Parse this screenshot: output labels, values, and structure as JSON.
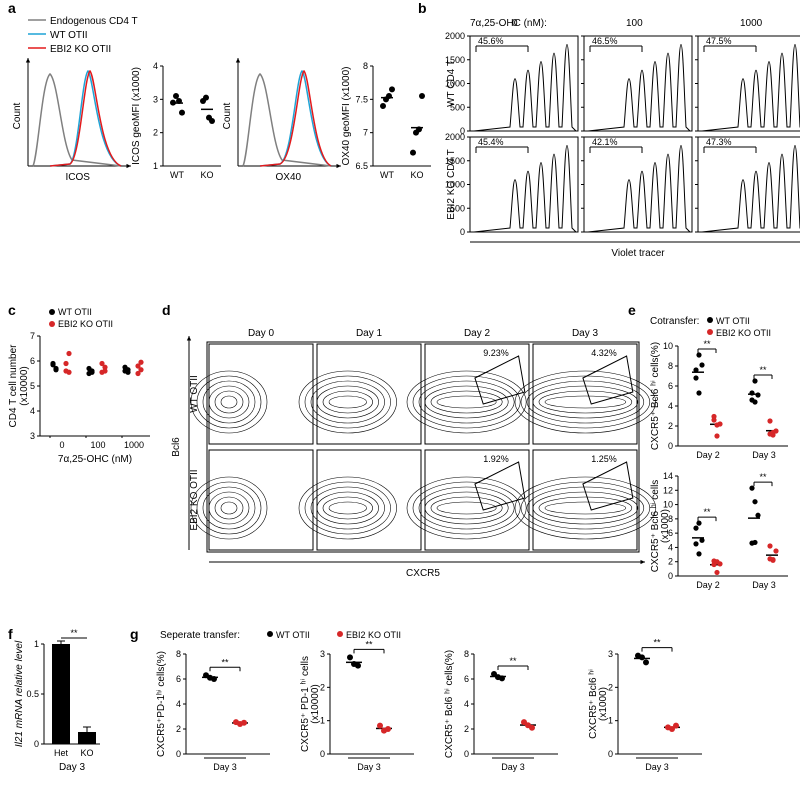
{
  "panels": {
    "a": "a",
    "b": "b",
    "c": "c",
    "d": "d",
    "e": "e",
    "f": "f",
    "g": "g"
  },
  "panelA": {
    "legend": {
      "endo": "Endogenous CD4 T",
      "wt": "WT OTII",
      "ko": "EBI2 KO OTII"
    },
    "colors": {
      "endo": "#808080",
      "wt": "#1fa4d6",
      "ko": "#e31a1c"
    },
    "hist_xlabel_left": "ICOS",
    "hist_xlabel_right": "OX40",
    "hist_ylabel": "Count",
    "scatter_left": {
      "ylabel": "ICOS geoMFI (x1000)",
      "yticks": [
        1,
        2,
        3,
        4
      ],
      "groups": [
        "WT",
        "KO"
      ],
      "WT": [
        2.9,
        3.1,
        2.95,
        2.6
      ],
      "KO": [
        2.95,
        3.05,
        2.45,
        2.35
      ]
    },
    "scatter_right": {
      "ylabel": "OX40 geoMFI (x1000)",
      "yticks": [
        6.5,
        7.0,
        7.5,
        8.0
      ],
      "groups": [
        "WT",
        "KO"
      ],
      "WT": [
        7.4,
        7.5,
        7.55,
        7.65
      ],
      "KO": [
        6.7,
        7.0,
        7.05,
        7.55
      ]
    }
  },
  "panelB": {
    "title": "7α,25-OHC (nM):",
    "cols": [
      "0",
      "100",
      "1000"
    ],
    "row_labels": [
      "WT CD4 T",
      "EBI2 KO CD4 T"
    ],
    "gate_pct": [
      [
        "45.6%",
        "46.5%",
        "47.5%"
      ],
      [
        "45.4%",
        "42.1%",
        "47.3%"
      ]
    ],
    "xlabel": "Violet tracer",
    "yticks": [
      0,
      500,
      1000,
      1500,
      2000
    ]
  },
  "panelC": {
    "ylabel": "CD4 T cell number\n(x10000)",
    "yticks": [
      3,
      4,
      5,
      6,
      7
    ],
    "xlabel": "7α,25-OHC (nM)",
    "groups": [
      "0",
      "100",
      "1000"
    ],
    "legend": {
      "wt": "WT OTII",
      "ko": "EBI2 KO OTII"
    },
    "data": {
      "0": {
        "wt": [
          5.9,
          5.7,
          5.85,
          5.65
        ],
        "ko": [
          5.9,
          6.3,
          5.6,
          5.55
        ]
      },
      "100": {
        "wt": [
          5.7,
          5.6,
          5.5,
          5.55
        ],
        "ko": [
          5.55,
          5.6,
          5.9,
          5.75
        ]
      },
      "1000": {
        "wt": [
          5.75,
          5.55,
          5.6,
          5.65
        ],
        "ko": [
          5.5,
          5.95,
          5.8,
          5.65
        ]
      }
    }
  },
  "panelD": {
    "cols": [
      "Day 0",
      "Day 1",
      "Day 2",
      "Day 3"
    ],
    "rows": [
      "WT OTII",
      "EBI2 KO OTII"
    ],
    "gate_pct": {
      "WT": {
        "Day 2": "9.23%",
        "Day 3": "4.32%"
      },
      "KO": {
        "Day 2": "1.92%",
        "Day 3": "1.25%"
      }
    },
    "ylabel": "Bcl6",
    "xlabel": "CXCR5"
  },
  "panelE": {
    "cotransfer_label": "Cotransfer:",
    "legend": {
      "wt": "WT OTII",
      "ko": "EBI2 KO OTII"
    },
    "top": {
      "ylabel": "CXCR5⁺ Bcl6 ʰⁱ cells(%)",
      "yticks": [
        0,
        2,
        4,
        6,
        8,
        10
      ],
      "groups": [
        "Day 2",
        "Day 3"
      ],
      "wt": {
        "Day 2": [
          7.6,
          9.1,
          8.1,
          6.8,
          5.3
        ],
        "Day 3": [
          5.3,
          6.5,
          5.1,
          4.6,
          4.4
        ]
      },
      "ko": {
        "Day 2": [
          2.6,
          2.1,
          2.2,
          2.95,
          1.0
        ],
        "Day 3": [
          1.2,
          1.1,
          1.5,
          2.5,
          1.35
        ]
      },
      "sig": [
        "**",
        "**"
      ]
    },
    "bottom": {
      "ylabel": "CXCR5⁺ Bcl6 ʰⁱ cells\n(x1000)",
      "yticks": [
        0,
        2,
        4,
        6,
        8,
        10,
        12,
        14
      ],
      "groups": [
        "Day 2",
        "Day 3"
      ],
      "wt": {
        "Day 2": [
          6.7,
          7.4,
          5.0,
          4.5,
          3.1
        ],
        "Day 3": [
          12.3,
          10.4,
          8.5,
          4.6,
          4.7
        ]
      },
      "ko": {
        "Day 2": [
          2.1,
          2.0,
          1.7,
          1.6,
          0.5
        ],
        "Day 3": [
          2.4,
          2.2,
          3.5,
          4.2,
          2.3
        ]
      },
      "sig": [
        "**",
        "**"
      ]
    }
  },
  "panelF": {
    "ylabel": "Il21 mRNA relative level",
    "yticks": [
      0,
      0.5,
      1.0
    ],
    "groups": [
      "Het",
      "KO"
    ],
    "bars": [
      1.0,
      0.12
    ],
    "err": [
      0.03,
      0.05
    ],
    "sig": "**",
    "xlabel": "Day 3"
  },
  "panelG": {
    "separate_label": "Seperate transfer:",
    "legend": {
      "wt": "WT OTII",
      "ko": "EBI2 KO OTII"
    },
    "charts": [
      {
        "ylabel": "CXCR5⁺PD-1ʰⁱ cells(%)",
        "yticks": [
          0,
          2,
          4,
          6,
          8
        ],
        "wt": [
          6.3,
          6.1,
          6.0
        ],
        "ko": [
          2.55,
          2.4,
          2.5
        ],
        "sig": "**"
      },
      {
        "ylabel": "CXCR5⁺ PD-1 ʰⁱ cells\n(x10000)",
        "yticks": [
          0,
          1,
          2,
          3
        ],
        "wt": [
          2.9,
          2.7,
          2.65
        ],
        "ko": [
          0.85,
          0.7,
          0.75
        ],
        "sig": "**"
      },
      {
        "ylabel": "CXCR5⁺ Bcl6 ʰⁱ cells(%)",
        "yticks": [
          0,
          2,
          4,
          6,
          8
        ],
        "wt": [
          6.4,
          6.15,
          6.05
        ],
        "ko": [
          2.55,
          2.3,
          2.1
        ],
        "sig": "**"
      },
      {
        "ylabel": "CXCR5⁺ Bcl6 ʰⁱ\n(x1000)",
        "yticks": [
          0,
          1,
          2,
          3
        ],
        "wt": [
          2.95,
          2.9,
          2.75
        ],
        "ko": [
          0.8,
          0.75,
          0.85
        ],
        "sig": "**"
      }
    ],
    "xlabel": "Day 3"
  }
}
